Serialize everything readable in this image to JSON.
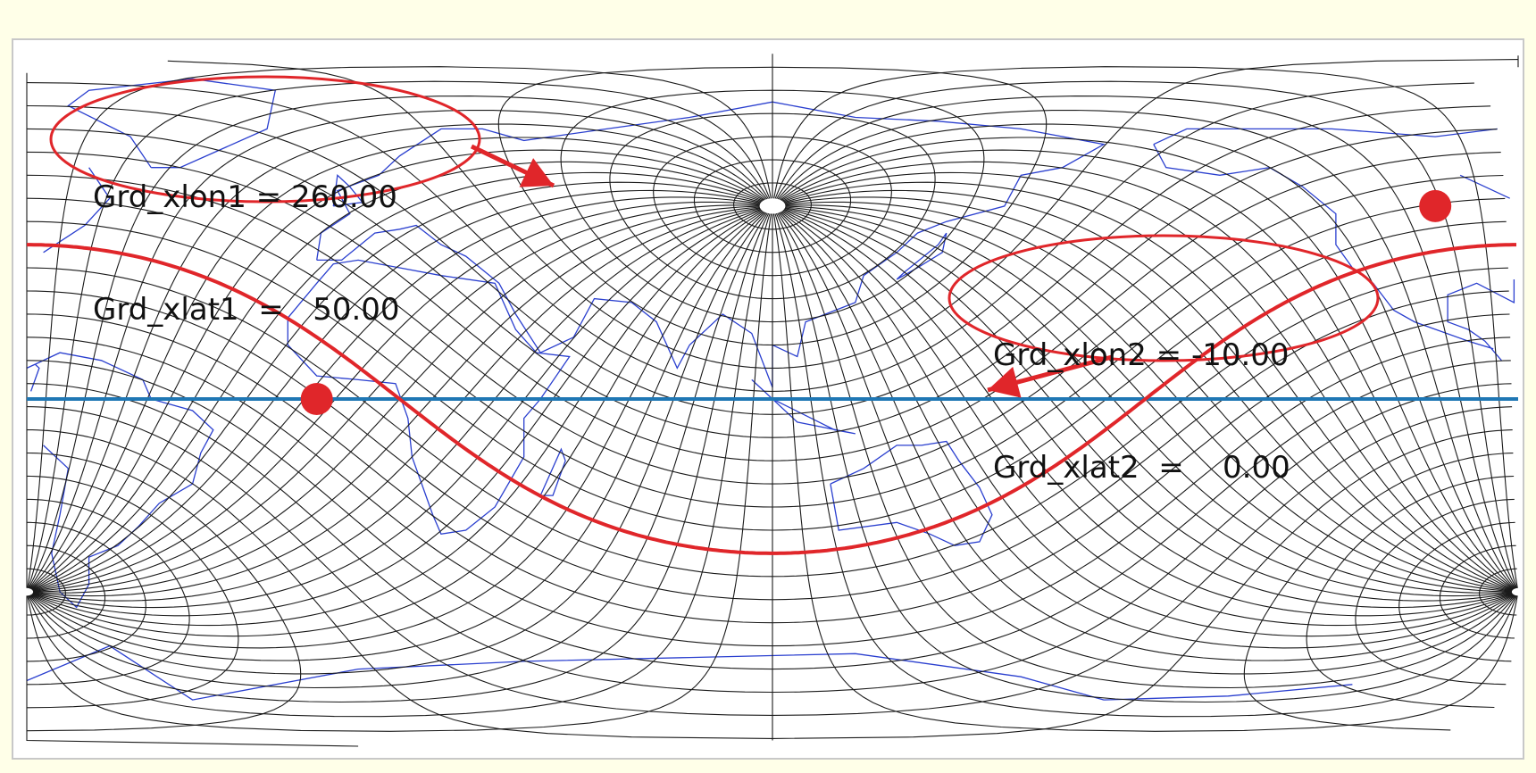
{
  "map": {
    "projection": "rotated-pole equirectangular grid",
    "colors": {
      "background": "#ffffe8",
      "frame": "#c8c8c8",
      "panel": "#ffffff",
      "grid": "#1a1a1a",
      "coastline": "#2a3fcf",
      "great_circle": "#e0262a",
      "equator": "#1f77b4",
      "callout": "#e0262a"
    }
  },
  "points": [
    {
      "id": "point-1",
      "lon_label": "Grd_xlon1 = 260.00",
      "lat_label": "Grd_xlat1  =   50.00",
      "lon": 260.0,
      "lat": 50.0
    },
    {
      "id": "point-2",
      "lon_label": "Grd_xlon2 = -10.00",
      "lat_label": "Grd_xlat2  =    0.00",
      "lon": -10.0,
      "lat": 0.0
    }
  ]
}
